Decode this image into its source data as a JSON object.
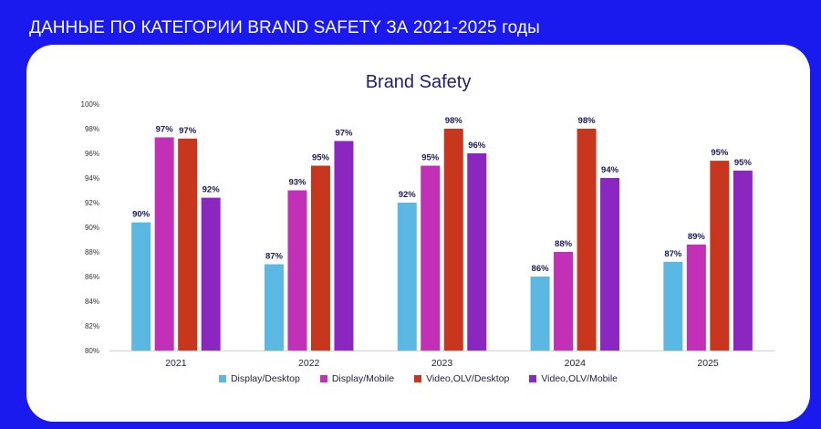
{
  "page": {
    "heading": "ДАННЫЕ ПО КАТЕГОРИИ BRAND SAFETY ЗА 2021-2025 годы"
  },
  "chart_data": {
    "type": "bar",
    "title": "Brand Safety",
    "xlabel": "",
    "ylabel": "",
    "ylim": [
      80,
      100
    ],
    "yticks": [
      "80%",
      "82%",
      "84%",
      "86%",
      "88%",
      "90%",
      "92%",
      "94%",
      "96%",
      "98%",
      "100%"
    ],
    "grid": false,
    "legend_position": "bottom",
    "categories": [
      "2021",
      "2022",
      "2023",
      "2024",
      "2025"
    ],
    "series": [
      {
        "name": "Display/Desktop",
        "color": "#5bb8e3",
        "values": [
          90.4,
          87.0,
          92.0,
          86.0,
          87.2
        ],
        "labels": [
          "90%",
          "87%",
          "92%",
          "86%",
          "87%"
        ]
      },
      {
        "name": "Display/Mobile",
        "color": "#c230b8",
        "values": [
          97.3,
          93.0,
          95.0,
          88.0,
          88.6
        ],
        "labels": [
          "97%",
          "93%",
          "95%",
          "88%",
          "89%"
        ]
      },
      {
        "name": "Video,OLV/Desktop",
        "color": "#c8361e",
        "values": [
          97.2,
          95.0,
          98.0,
          98.0,
          95.4
        ],
        "labels": [
          "97%",
          "95%",
          "98%",
          "98%",
          "95%"
        ]
      },
      {
        "name": "Video,OLV/Mobile",
        "color": "#8b27c0",
        "values": [
          92.4,
          97.0,
          96.0,
          94.0,
          94.6
        ],
        "labels": [
          "92%",
          "97%",
          "96%",
          "94%",
          "95%"
        ]
      }
    ]
  }
}
